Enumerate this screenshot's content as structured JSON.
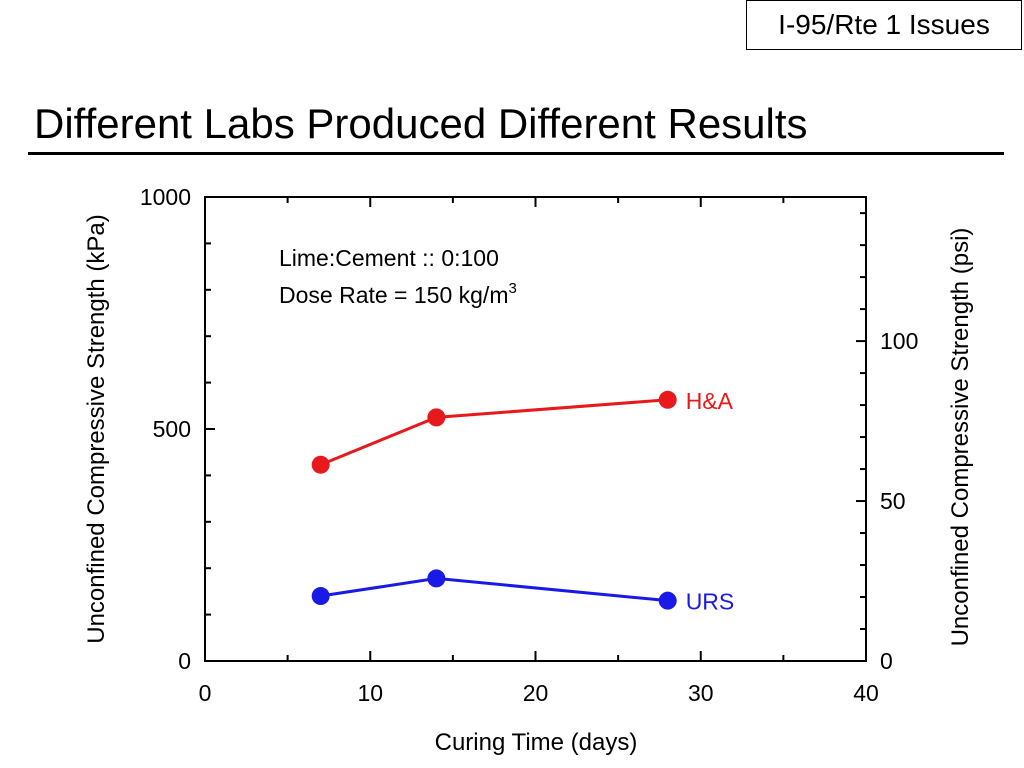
{
  "header": {
    "tag": "I-95/Rte 1 Issues",
    "title": "Different Labs Produced Different Results"
  },
  "chart_data": {
    "type": "line",
    "xlabel": "Curing Time (days)",
    "ylabel": "Unconfined Compressive Strength (kPa)",
    "y2label": "Unconfined Compressive Strength (psi)",
    "xlim": [
      0,
      40
    ],
    "ylim": [
      0,
      1000
    ],
    "y2lim": [
      0,
      145.04
    ],
    "x_ticks": [
      0,
      10,
      20,
      30,
      40
    ],
    "y_ticks": [
      0,
      500,
      1000
    ],
    "y2_ticks": [
      0,
      50,
      100
    ],
    "x_tick_labels": [
      "0",
      "10",
      "20",
      "30",
      "40"
    ],
    "y_tick_labels": [
      "0",
      "500",
      "1000"
    ],
    "y2_tick_labels": [
      "0",
      "50",
      "100"
    ],
    "grid": false,
    "annotation": {
      "line1": "Lime:Cement :: 0:100",
      "line2_prefix": "Dose Rate = 150 kg/m",
      "line2_sup": "3"
    },
    "series": [
      {
        "name": "H&A",
        "color": "#e8191c",
        "x": [
          7,
          14,
          28
        ],
        "y": [
          423,
          525,
          563
        ]
      },
      {
        "name": "URS",
        "color": "#1a1ae6",
        "x": [
          7,
          14,
          28
        ],
        "y": [
          140,
          178,
          130
        ]
      }
    ]
  }
}
